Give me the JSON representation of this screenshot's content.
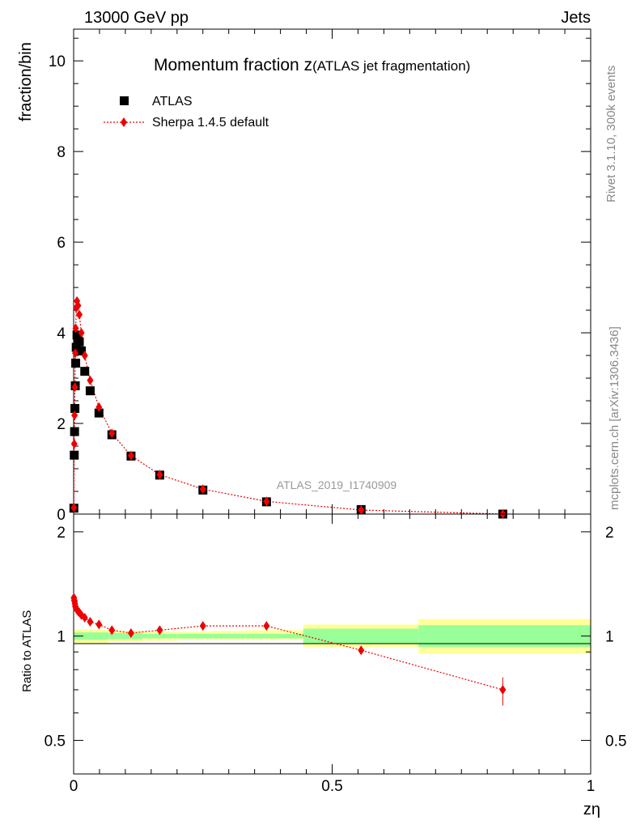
{
  "header": {
    "energy_label": "13000 GeV pp",
    "category_label": "Jets"
  },
  "side": {
    "rivet_label": "Rivet 3.1.10,  300k events",
    "source_label": "mcplots.cern.ch [arXiv:1306.3436]"
  },
  "chart_data": {
    "type": "scatter",
    "title": "Momentum fraction z",
    "title_suffix": "(ATLAS jet fragmentation)",
    "analysis_label": "ATLAS_2019_I1740909",
    "xlabel": "zη",
    "ylabel": "fraction/bin",
    "ratio_ylabel": "Ratio to ATLAS",
    "xlim": [
      0,
      1
    ],
    "ylim": [
      0,
      10.7
    ],
    "ratio_ylim": [
      0.4,
      2.25
    ],
    "x_ticks": [
      "0",
      "0.5",
      "1"
    ],
    "y_ticks": [
      "0",
      "2",
      "4",
      "6",
      "8",
      "10"
    ],
    "ratio_ticks": [
      "0.5",
      "1",
      "2"
    ],
    "legend": [
      "ATLAS",
      "Sherpa 1.4.5 default"
    ],
    "series": [
      {
        "name": "ATLAS",
        "x": [
          0.0005,
          0.0012,
          0.0018,
          0.0025,
          0.0032,
          0.004,
          0.005,
          0.0065,
          0.0085,
          0.011,
          0.015,
          0.0215,
          0.032,
          0.049,
          0.074,
          0.111,
          0.1665,
          0.25,
          0.373,
          0.556,
          0.83
        ],
        "values": [
          0.13,
          1.3,
          1.82,
          2.33,
          2.83,
          3.33,
          3.68,
          3.95,
          3.85,
          3.8,
          3.6,
          3.15,
          2.72,
          2.23,
          1.75,
          1.28,
          0.86,
          0.53,
          0.27,
          0.1,
          0.0
        ]
      },
      {
        "name": "Sherpa 1.4.5 default",
        "x": [
          0.0005,
          0.0012,
          0.0018,
          0.0025,
          0.0032,
          0.004,
          0.005,
          0.0065,
          0.0085,
          0.011,
          0.015,
          0.0215,
          0.032,
          0.049,
          0.074,
          0.111,
          0.1665,
          0.25,
          0.373,
          0.556,
          0.83
        ],
        "values": [
          0.14,
          1.55,
          2.18,
          2.8,
          3.55,
          4.1,
          4.55,
          4.7,
          4.6,
          4.4,
          4.0,
          3.5,
          2.95,
          2.36,
          1.78,
          1.29,
          0.87,
          0.55,
          0.28,
          0.09,
          0.0
        ]
      }
    ],
    "ratio": {
      "x": [
        0.0005,
        0.0012,
        0.0018,
        0.0025,
        0.0032,
        0.004,
        0.005,
        0.0065,
        0.0085,
        0.011,
        0.015,
        0.0215,
        0.032,
        0.049,
        0.074,
        0.111,
        0.1665,
        0.25,
        0.373,
        0.556,
        0.83
      ],
      "values": [
        1.29,
        1.27,
        1.26,
        1.24,
        1.22,
        1.21,
        1.2,
        1.19,
        1.18,
        1.17,
        1.15,
        1.13,
        1.1,
        1.08,
        1.04,
        1.02,
        1.04,
        1.07,
        1.07,
        0.91,
        0.7
      ],
      "last_err": [
        0.63,
        0.76
      ]
    },
    "bands": {
      "edges": [
        0,
        0.067,
        0.133,
        0.2,
        0.267,
        0.333,
        0.444,
        0.667,
        1.0
      ],
      "stat_lo": [
        0.975,
        0.98,
        0.985,
        0.985,
        0.985,
        0.985,
        0.95,
        0.93
      ],
      "stat_hi": [
        1.025,
        1.02,
        1.015,
        1.015,
        1.015,
        1.015,
        1.05,
        1.075
      ],
      "sys_lo": [
        0.955,
        0.965,
        0.97,
        0.975,
        0.975,
        0.975,
        0.93,
        0.89
      ],
      "sys_hi": [
        1.045,
        1.035,
        1.03,
        1.03,
        1.035,
        1.04,
        1.08,
        1.12
      ]
    }
  }
}
